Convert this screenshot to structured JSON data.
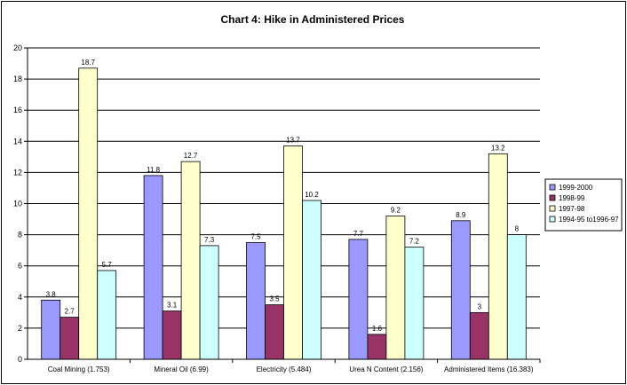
{
  "chart_data": {
    "type": "bar",
    "title": "Chart 4: Hike in Administered Prices",
    "categories": [
      "Coal Mining (1.753)",
      "Mineral Oil (6.99)",
      "Electricity (5.484)",
      "Urea N Content (2.156)",
      "Administered Items (16.383)"
    ],
    "series": [
      {
        "name": "1999-2000",
        "values": [
          3.8,
          11.8,
          7.5,
          7.7,
          8.9
        ],
        "labels": [
          "3.8",
          "11.8",
          "7.5",
          "7.7",
          "8.9"
        ]
      },
      {
        "name": "1998-99",
        "values": [
          2.7,
          3.1,
          3.5,
          1.6,
          3
        ],
        "labels": [
          "2.7",
          "3.1",
          "3.5",
          "1.6",
          "3"
        ]
      },
      {
        "name": "1997-98",
        "values": [
          18.7,
          12.7,
          13.7,
          9.2,
          13.2
        ],
        "labels": [
          "18.7",
          "12.7",
          "13.7",
          "9.2",
          "13.2"
        ]
      },
      {
        "name": "1994-95 to1996-97",
        "values": [
          5.7,
          7.3,
          10.2,
          7.2,
          8
        ],
        "labels": [
          "5.7",
          "7.3",
          "10.2",
          "7.2",
          "8"
        ]
      }
    ],
    "ylim": [
      0,
      20
    ],
    "yticks": [
      "0",
      "2",
      "4",
      "6",
      "8",
      "10",
      "12",
      "14",
      "16",
      "18",
      "20"
    ],
    "grid": true,
    "legend_position": "right",
    "colors": [
      "#9999ff",
      "#993366",
      "#ffffcc",
      "#ccffff"
    ]
  }
}
